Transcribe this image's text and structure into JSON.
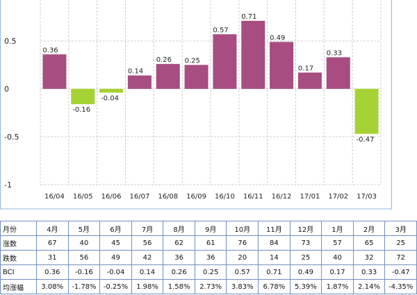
{
  "chart_data": {
    "type": "bar",
    "categories": [
      "16/04",
      "16/05",
      "16/06",
      "16/07",
      "16/08",
      "16/09",
      "16/10",
      "16/11",
      "16/12",
      "17/01",
      "17/02",
      "17/03"
    ],
    "values": [
      0.36,
      -0.16,
      -0.04,
      0.14,
      0.26,
      0.25,
      0.57,
      0.71,
      0.49,
      0.17,
      0.33,
      -0.47
    ],
    "data_labels": [
      "0.36",
      "-0.16",
      "-0.04",
      "0.14",
      "0.26",
      "0.25",
      "0.57",
      "0.71",
      "0.49",
      "0.17",
      "0.33",
      "-0.47"
    ],
    "yticks": [
      "0.5",
      "0",
      "-0.5",
      "-1"
    ],
    "ylim": [
      -1,
      1
    ],
    "grid": true,
    "colors": {
      "positive": "#a74d81",
      "negative": "#a6d334",
      "axis_frame": "#8bb3e6",
      "grid": "#cccccc"
    }
  },
  "table": {
    "header": {
      "label": "月份",
      "cells": [
        "4月",
        "5月",
        "6月",
        "7月",
        "8月",
        "9月",
        "10月",
        "11月",
        "12月",
        "1月",
        "2月",
        "3月"
      ]
    },
    "rows": [
      {
        "label": "涨数",
        "cells": [
          "67",
          "40",
          "45",
          "56",
          "62",
          "61",
          "76",
          "84",
          "73",
          "57",
          "65",
          "25"
        ]
      },
      {
        "label": "跌数",
        "cells": [
          "31",
          "56",
          "49",
          "42",
          "36",
          "36",
          "20",
          "14",
          "25",
          "40",
          "32",
          "72"
        ]
      },
      {
        "label": "BCI",
        "cells": [
          "0.36",
          "-0.16",
          "-0.04",
          "0.14",
          "0.26",
          "0.25",
          "0.57",
          "0.71",
          "0.49",
          "0.17",
          "0.33",
          "-0.47"
        ]
      },
      {
        "label": "均涨幅",
        "cells": [
          "3.08%",
          "-1.78%",
          "-0.25%",
          "1.98%",
          "1.58%",
          "2.73%",
          "3.83%",
          "6.78%",
          "5.39%",
          "1.87%",
          "2.14%",
          "-4.35%"
        ]
      }
    ]
  }
}
